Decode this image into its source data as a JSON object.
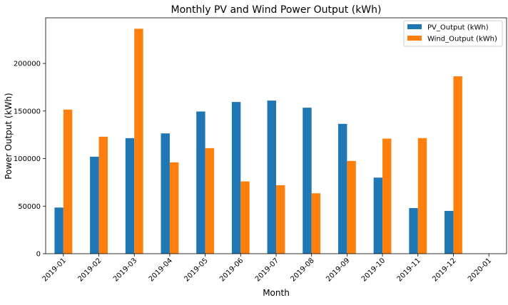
{
  "chart_data": {
    "type": "bar",
    "title": "Monthly PV and Wind Power Output (kWh)",
    "xlabel": "Month",
    "ylabel": "Power Output (kWh)",
    "categories": [
      "2019-01",
      "2019-02",
      "2019-03",
      "2019-04",
      "2019-05",
      "2019-06",
      "2019-07",
      "2019-08",
      "2019-09",
      "2019-10",
      "2019-11",
      "2019-12",
      "2020-01"
    ],
    "series": [
      {
        "name": "PV_Output (kWh)",
        "color": "#1f77b4",
        "values": [
          48500,
          102000,
          121500,
          126500,
          149500,
          159500,
          161000,
          153500,
          136500,
          80000,
          48000,
          45000,
          0
        ]
      },
      {
        "name": "Wind_Output (kWh)",
        "color": "#ff7f0e",
        "values": [
          151500,
          123000,
          236500,
          96000,
          111000,
          76000,
          72000,
          63500,
          97500,
          121000,
          121500,
          186500,
          0
        ]
      }
    ],
    "ylim": [
      0,
      248000
    ],
    "yticks": [
      0,
      50000,
      100000,
      150000,
      200000
    ],
    "ytick_labels": [
      "0",
      "50000",
      "100000",
      "150000",
      "200000"
    ],
    "legend_position": "top-right",
    "grid": false
  }
}
